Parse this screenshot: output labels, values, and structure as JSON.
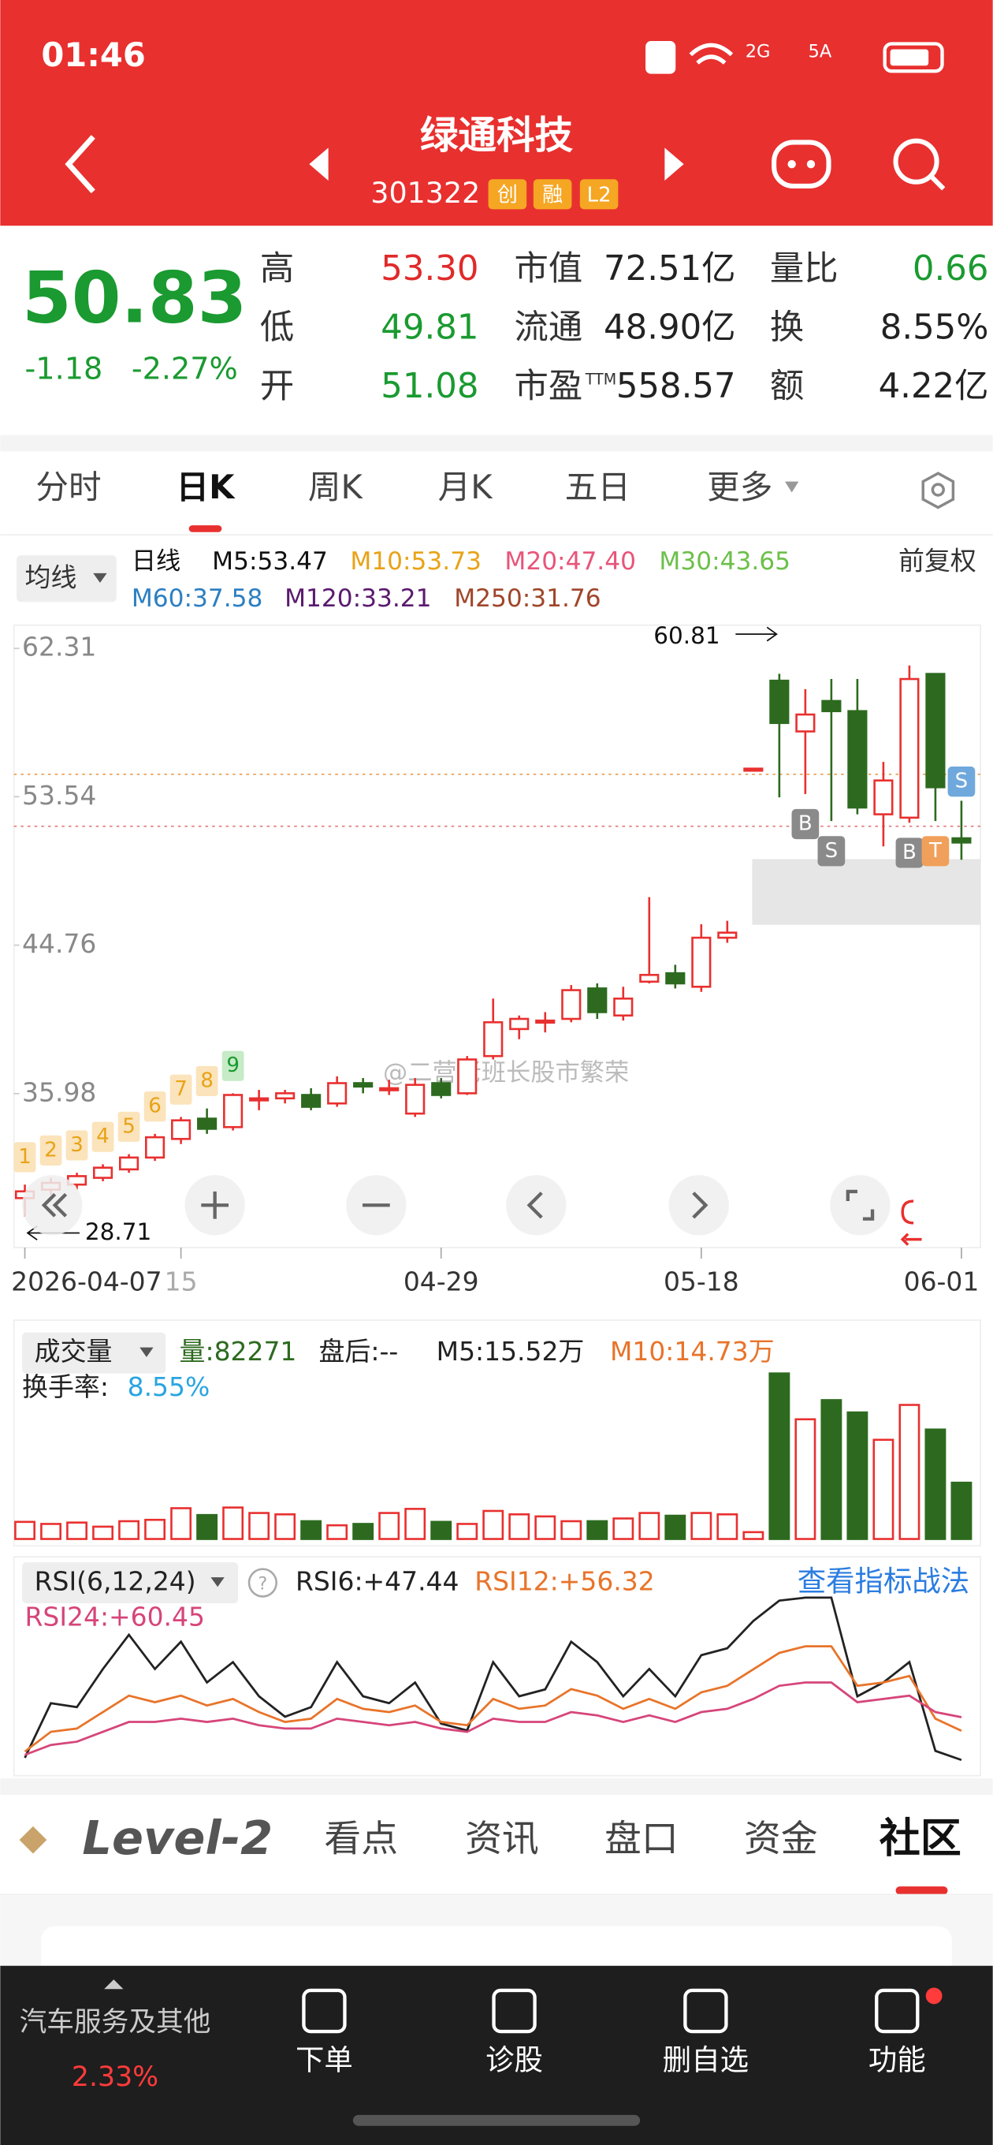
{
  "status_bar": {
    "time": "01:46",
    "signals": [
      "2G",
      "5A"
    ]
  },
  "header": {
    "title": "绿通科技",
    "code": "301322",
    "badges": [
      "创",
      "融",
      "L2"
    ]
  },
  "quote": {
    "price": "50.83",
    "change": "-1.18",
    "change_pct": "-2.27%",
    "stats": [
      {
        "label": "高",
        "value": "53.30",
        "color": "#e02a2a"
      },
      {
        "label": "市值",
        "value": "72.51亿",
        "color": "#222"
      },
      {
        "label": "量比",
        "value": "0.66",
        "color": "#1a9a30"
      },
      {
        "label": "低",
        "value": "49.81",
        "color": "#1a9a30"
      },
      {
        "label": "流通",
        "value": "48.90亿",
        "color": "#222"
      },
      {
        "label": "换",
        "value": "8.55%",
        "color": "#222"
      },
      {
        "label": "开",
        "value": "51.08",
        "color": "#1a9a30"
      },
      {
        "label": "市盈",
        "value": "558.57",
        "color": "#222",
        "suffix": "TTM"
      },
      {
        "label": "额",
        "value": "4.22亿",
        "color": "#222"
      }
    ]
  },
  "tabs": [
    "分时",
    "日K",
    "周K",
    "月K",
    "五日",
    "更多"
  ],
  "chart_data": [
    {
      "type": "candlestick",
      "legend_button": "均线",
      "adjust": "前复权",
      "legend": [
        {
          "label": "日线",
          "color": "#111"
        },
        {
          "label": "M5:53.47",
          "color": "#111"
        },
        {
          "label": "M10:53.73",
          "color": "#e8a317"
        },
        {
          "label": "M20:47.40",
          "color": "#e8557a"
        },
        {
          "label": "M30:43.65",
          "color": "#6cc04a"
        },
        {
          "label": "M60:37.58",
          "color": "#2c7fc1"
        },
        {
          "label": "M120:33.21",
          "color": "#5b1a6e"
        },
        {
          "label": "M250:31.76",
          "color": "#a0462a"
        }
      ],
      "ylim": [
        27.44,
        63.28
      ],
      "yticks": [
        62.31,
        53.54,
        44.76,
        35.98
      ],
      "x_labels": [
        {
          "index": 0,
          "label": "2026-04-07"
        },
        {
          "index": 6,
          "label": "15"
        },
        {
          "index": 16,
          "label": "04-29"
        },
        {
          "index": 26,
          "label": "05-18"
        },
        {
          "index": 36,
          "label": "06-01"
        }
      ],
      "open": [
        29.8,
        30.3,
        30.6,
        31.0,
        31.5,
        32.2,
        33.3,
        34.5,
        34.0,
        35.6,
        35.7,
        35.9,
        35.4,
        36.6,
        36.3,
        34.8,
        36.6,
        36.0,
        38.2,
        39.8,
        40.2,
        40.4,
        42.2,
        40.6,
        42.6,
        43.1,
        42.3,
        45.2,
        55.2,
        60.4,
        57.4,
        59.2,
        58.6,
        52.5,
        52.3,
        60.8,
        51.08
      ],
      "high": [
        30.6,
        31.0,
        31.3,
        31.8,
        32.4,
        33.6,
        34.6,
        35.1,
        36.0,
        36.2,
        36.2,
        36.3,
        37.0,
        36.9,
        36.8,
        36.9,
        36.9,
        38.2,
        41.6,
        40.6,
        40.8,
        42.4,
        42.5,
        42.3,
        47.6,
        43.6,
        46.0,
        46.2,
        55.2,
        60.81,
        59.9,
        60.5,
        60.5,
        55.6,
        61.3,
        60.8,
        53.3
      ],
      "low": [
        28.71,
        30.0,
        30.3,
        30.8,
        31.3,
        32.0,
        33.0,
        33.6,
        33.8,
        35.0,
        35.4,
        35.0,
        35.2,
        36.0,
        35.9,
        34.6,
        35.7,
        35.9,
        38.0,
        39.2,
        39.6,
        40.2,
        40.4,
        40.3,
        42.5,
        42.2,
        42.0,
        44.9,
        55.2,
        53.5,
        53.7,
        52.1,
        52.5,
        50.6,
        52.0,
        52.1,
        49.81
      ],
      "close": [
        30.2,
        30.7,
        31.1,
        31.6,
        32.2,
        33.4,
        34.4,
        33.9,
        35.9,
        35.7,
        36.0,
        35.2,
        36.6,
        36.4,
        36.3,
        36.5,
        35.9,
        38.0,
        40.2,
        40.4,
        40.3,
        42.1,
        40.8,
        41.6,
        43.0,
        42.5,
        45.2,
        45.5,
        55.2,
        57.9,
        58.4,
        58.6,
        52.9,
        54.5,
        60.5,
        54.1,
        50.83
      ],
      "sequence_labels": [
        1,
        2,
        3,
        4,
        5,
        6,
        7,
        8,
        9
      ],
      "annotations": [
        {
          "index": 29,
          "value": 60.81
        },
        {
          "index": 0,
          "value": 28.71
        }
      ],
      "markers": [
        {
          "index": 30,
          "label": "B",
          "color": "#8a8a8a",
          "side": "below"
        },
        {
          "index": 31,
          "label": "S",
          "color": "#8a8a8a",
          "side": "below"
        },
        {
          "index": 34,
          "label": "B",
          "color": "#8a8a8a",
          "side": "below"
        },
        {
          "index": 35,
          "label": "T",
          "color": "#f0a05a",
          "side": "below"
        },
        {
          "index": 36,
          "label": "S",
          "color": "#6fa8dc",
          "side": "above"
        }
      ],
      "watermark": "@二营老班长股市繁荣"
    },
    {
      "type": "bar",
      "title": "成交量",
      "legend": [
        {
          "label": "量:82271",
          "color": "#2d6a1f"
        },
        {
          "label": "盘后:--",
          "color": "#222"
        },
        {
          "label": "M5:15.52万",
          "color": "#222"
        },
        {
          "label": "M10:14.73万",
          "color": "#e8742a"
        }
      ],
      "turnover_label": "换手率:",
      "turnover": "8.55%",
      "ylim": [
        0,
        25
      ],
      "values": [
        2.5,
        2.2,
        2.4,
        1.8,
        2.6,
        2.8,
        4.5,
        3.5,
        4.6,
        3.8,
        3.6,
        2.6,
        2.0,
        2.2,
        3.8,
        4.4,
        2.5,
        2.2,
        4.1,
        3.6,
        3.3,
        2.6,
        2.6,
        3.0,
        3.8,
        3.4,
        3.8,
        3.6,
        1.0,
        24.2,
        17.5,
        20.3,
        18.5,
        14.5,
        19.6,
        16.0,
        8.2271
      ]
    },
    {
      "type": "line",
      "title": "RSI(6,12,24)",
      "link": "查看指标战法",
      "ylim": [
        46,
        98
      ],
      "legend": [
        {
          "label": "RSI6:+47.44",
          "color": "#222"
        },
        {
          "label": "RSI12:+56.32",
          "color": "#e8742a"
        },
        {
          "label": "RSI24:+60.45",
          "color": "#d6457a"
        }
      ],
      "series": [
        {
          "name": "RSI6",
          "color": "#222",
          "values": [
            48.1,
            64.7,
            63.5,
            75.1,
            85.5,
            75.1,
            83.4,
            71,
            77.2,
            66.8,
            60.6,
            63.5,
            77.2,
            66.8,
            64.7,
            71,
            58.5,
            56.4,
            77.2,
            66.8,
            68.9,
            83.4,
            77.2,
            66.8,
            75.1,
            66.8,
            79.3,
            81.4,
            89.7,
            95.9,
            96.8,
            96.8,
            66.8,
            71,
            77.2,
            50.2,
            47.44
          ]
        },
        {
          "name": "RSI12",
          "color": "#e8742a",
          "values": [
            50,
            56,
            57,
            62,
            67,
            65,
            67,
            64,
            66,
            62,
            59,
            60,
            66,
            63,
            62,
            64,
            59,
            58,
            66,
            63,
            64,
            69,
            67,
            63,
            66,
            63,
            68,
            70,
            75,
            80,
            82,
            82,
            70,
            71,
            73,
            60,
            56.32
          ]
        },
        {
          "name": "RSI24",
          "color": "#d6457a",
          "values": [
            49,
            52,
            53,
            56,
            59,
            59,
            60,
            59,
            60,
            58,
            57,
            57,
            60,
            59,
            58,
            59,
            57,
            56,
            60,
            59,
            59,
            62,
            61,
            59,
            61,
            59,
            62,
            63,
            66,
            70,
            71,
            71,
            65,
            66,
            67,
            62,
            60.45
          ]
        }
      ]
    }
  ],
  "bottom_tabs": {
    "brand": "Level-2",
    "items": [
      "看点",
      "资讯",
      "盘口",
      "资金",
      "社区"
    ]
  },
  "nav": {
    "sector": "汽车服务及其他",
    "sector_change": "2.33%",
    "items": [
      "下单",
      "诊股",
      "删自选",
      "功能"
    ]
  }
}
